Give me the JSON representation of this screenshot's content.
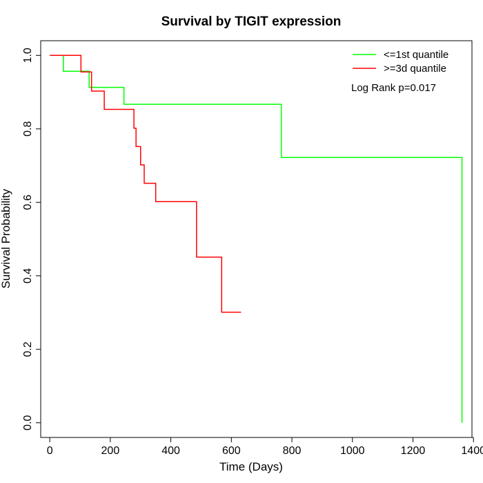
{
  "chart_data": {
    "type": "line",
    "title": "Survival by TIGIT expression",
    "xlabel": "Time (Days)",
    "ylabel": "Survival Probability",
    "xlim": [
      -30,
      1395
    ],
    "ylim": [
      -0.04,
      1.04
    ],
    "x_ticks": [
      0,
      200,
      400,
      600,
      800,
      1000,
      1200,
      1400
    ],
    "y_ticks": [
      0.0,
      0.2,
      0.4,
      0.6,
      0.8,
      1.0
    ],
    "x_tick_labels": [
      "0",
      "200",
      "400",
      "600",
      "800",
      "1000",
      "1200",
      "1400"
    ],
    "y_tick_labels": [
      "0.0",
      "0.2",
      "0.4",
      "0.6",
      "0.8",
      "1.0"
    ],
    "grid": false,
    "legend_position": "top-right",
    "series": [
      {
        "name": "<=1st quantile",
        "color": "#00ff00",
        "step": true,
        "x": [
          0,
          45,
          130,
          245,
          765,
          1362,
          1362
        ],
        "y": [
          1.0,
          0.957,
          0.913,
          0.867,
          0.722,
          0.722,
          0.0
        ]
      },
      {
        "name": ">=3d quantile",
        "color": "#ff0000",
        "step": true,
        "x": [
          0,
          103,
          138,
          180,
          278,
          285,
          300,
          312,
          350,
          485,
          568,
          632
        ],
        "y": [
          1.0,
          0.955,
          0.903,
          0.853,
          0.802,
          0.752,
          0.702,
          0.652,
          0.602,
          0.451,
          0.301,
          0.301
        ]
      }
    ],
    "annotation": "Log Rank p=0.017"
  }
}
